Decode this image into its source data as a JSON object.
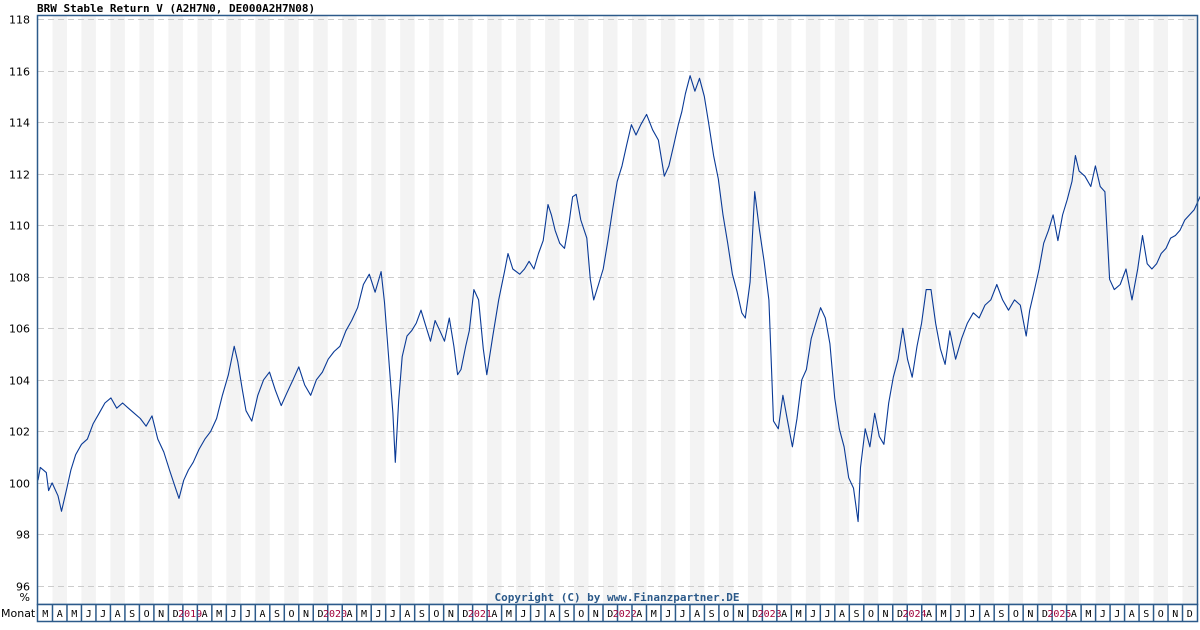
{
  "title": "BRW Stable Return V (A2H7N0, DE000A2H7N08)",
  "copyright": "Copyright (C) by www.Finanzpartner.DE",
  "x_axis_label": "Monat",
  "y_unit": "%",
  "colors": {
    "line": "#0a3a96",
    "frame": "#2c5a8a",
    "stripe": "#f3f3f3",
    "grid": "#cccccc",
    "year_label": "#a0003a"
  },
  "chart_data": {
    "type": "line",
    "title": "BRW Stable Return V (A2H7N0, DE000A2H7N08)",
    "xlabel": "Monat",
    "ylabel": "%",
    "ylim": [
      96,
      118
    ],
    "yticks": [
      96,
      98,
      100,
      102,
      104,
      106,
      108,
      110,
      112,
      114,
      116,
      118
    ],
    "grid": true,
    "legend": null,
    "x_range": [
      "2018-03",
      "2025-12"
    ],
    "x_tick_labels": [
      "M",
      "A",
      "M",
      "J",
      "J",
      "A",
      "S",
      "O",
      "N",
      "D",
      "2019",
      "A",
      "M",
      "J",
      "J",
      "A",
      "S",
      "O",
      "N",
      "D",
      "2020",
      "A",
      "M",
      "J",
      "J",
      "A",
      "S",
      "O",
      "N",
      "D",
      "2021",
      "A",
      "M",
      "J",
      "J",
      "A",
      "S",
      "O",
      "N",
      "D",
      "2022",
      "A",
      "M",
      "J",
      "J",
      "A",
      "S",
      "O",
      "N",
      "D",
      "2023",
      "A",
      "M",
      "J",
      "J",
      "A",
      "S",
      "O",
      "N",
      "D",
      "2024",
      "A",
      "M",
      "J",
      "J",
      "A",
      "S",
      "O",
      "N",
      "D",
      "2025",
      "A",
      "M",
      "J",
      "J",
      "A",
      "S",
      "O",
      "N",
      "D"
    ],
    "series": [
      {
        "name": "BRW Stable Return V",
        "points_month_index_value": [
          [
            0.0,
            100.1
          ],
          [
            0.16,
            100.6
          ],
          [
            0.57,
            100.4
          ],
          [
            0.73,
            99.7
          ],
          [
            0.97,
            100.0
          ],
          [
            1.38,
            99.5
          ],
          [
            1.62,
            98.9
          ],
          [
            1.95,
            99.7
          ],
          [
            2.27,
            100.5
          ],
          [
            2.6,
            101.1
          ],
          [
            3.0,
            101.5
          ],
          [
            3.41,
            101.7
          ],
          [
            3.81,
            102.3
          ],
          [
            4.22,
            102.7
          ],
          [
            4.62,
            103.1
          ],
          [
            5.03,
            103.3
          ],
          [
            5.43,
            102.9
          ],
          [
            5.84,
            103.1
          ],
          [
            6.24,
            102.9
          ],
          [
            6.65,
            102.7
          ],
          [
            7.06,
            102.5
          ],
          [
            7.46,
            102.2
          ],
          [
            7.87,
            102.6
          ],
          [
            8.27,
            101.7
          ],
          [
            8.68,
            101.2
          ],
          [
            9.08,
            100.5
          ],
          [
            9.49,
            99.8
          ],
          [
            9.73,
            99.4
          ],
          [
            10.06,
            100.1
          ],
          [
            10.38,
            100.5
          ],
          [
            10.71,
            100.8
          ],
          [
            11.11,
            101.3
          ],
          [
            11.52,
            101.7
          ],
          [
            11.92,
            102.0
          ],
          [
            12.33,
            102.5
          ],
          [
            12.73,
            103.4
          ],
          [
            13.14,
            104.2
          ],
          [
            13.54,
            105.3
          ],
          [
            13.79,
            104.7
          ],
          [
            14.11,
            103.6
          ],
          [
            14.36,
            102.8
          ],
          [
            14.76,
            102.4
          ],
          [
            15.17,
            103.4
          ],
          [
            15.57,
            104.0
          ],
          [
            15.98,
            104.3
          ],
          [
            16.38,
            103.6
          ],
          [
            16.79,
            103.0
          ],
          [
            17.19,
            103.5
          ],
          [
            17.6,
            104.0
          ],
          [
            18.0,
            104.5
          ],
          [
            18.41,
            103.8
          ],
          [
            18.82,
            103.4
          ],
          [
            19.22,
            104.0
          ],
          [
            19.63,
            104.3
          ],
          [
            20.03,
            104.8
          ],
          [
            20.44,
            105.1
          ],
          [
            20.84,
            105.3
          ],
          [
            21.25,
            105.9
          ],
          [
            21.65,
            106.3
          ],
          [
            22.06,
            106.8
          ],
          [
            22.46,
            107.7
          ],
          [
            22.87,
            108.1
          ],
          [
            23.27,
            107.4
          ],
          [
            23.68,
            108.2
          ],
          [
            23.92,
            107.0
          ],
          [
            24.17,
            105.1
          ],
          [
            24.5,
            102.7
          ],
          [
            24.66,
            100.8
          ],
          [
            24.9,
            103.2
          ],
          [
            25.14,
            104.9
          ],
          [
            25.47,
            105.7
          ],
          [
            25.79,
            105.9
          ],
          [
            26.11,
            106.2
          ],
          [
            26.44,
            106.7
          ],
          [
            26.76,
            106.1
          ],
          [
            27.09,
            105.5
          ],
          [
            27.41,
            106.3
          ],
          [
            27.74,
            105.9
          ],
          [
            28.06,
            105.5
          ],
          [
            28.39,
            106.4
          ],
          [
            28.71,
            105.3
          ],
          [
            28.96,
            104.2
          ],
          [
            29.2,
            104.4
          ],
          [
            29.52,
            105.3
          ],
          [
            29.77,
            105.9
          ],
          [
            30.09,
            107.5
          ],
          [
            30.41,
            107.1
          ],
          [
            30.74,
            105.2
          ],
          [
            30.98,
            104.2
          ],
          [
            31.39,
            105.7
          ],
          [
            31.8,
            107.1
          ],
          [
            32.2,
            108.2
          ],
          [
            32.44,
            108.9
          ],
          [
            32.77,
            108.3
          ],
          [
            33.25,
            108.1
          ],
          [
            33.58,
            108.3
          ],
          [
            33.9,
            108.6
          ],
          [
            34.23,
            108.3
          ],
          [
            34.55,
            108.9
          ],
          [
            34.87,
            109.4
          ],
          [
            35.2,
            110.8
          ],
          [
            35.44,
            110.4
          ],
          [
            35.69,
            109.8
          ],
          [
            36.01,
            109.3
          ],
          [
            36.34,
            109.1
          ],
          [
            36.66,
            110.1
          ],
          [
            36.9,
            111.1
          ],
          [
            37.15,
            111.2
          ],
          [
            37.47,
            110.2
          ],
          [
            37.88,
            109.5
          ],
          [
            38.12,
            107.9
          ],
          [
            38.36,
            107.1
          ],
          [
            38.69,
            107.7
          ],
          [
            39.01,
            108.3
          ],
          [
            39.34,
            109.4
          ],
          [
            39.66,
            110.6
          ],
          [
            39.98,
            111.7
          ],
          [
            40.31,
            112.3
          ],
          [
            40.63,
            113.1
          ],
          [
            40.96,
            113.9
          ],
          [
            41.28,
            113.5
          ],
          [
            41.61,
            113.9
          ],
          [
            42.01,
            114.3
          ],
          [
            42.42,
            113.7
          ],
          [
            42.82,
            113.3
          ],
          [
            43.23,
            111.9
          ],
          [
            43.55,
            112.3
          ],
          [
            43.88,
            113.1
          ],
          [
            44.2,
            113.9
          ],
          [
            44.44,
            114.4
          ],
          [
            44.69,
            115.1
          ],
          [
            45.01,
            115.8
          ],
          [
            45.34,
            115.2
          ],
          [
            45.66,
            115.7
          ],
          [
            45.99,
            115.0
          ],
          [
            46.31,
            113.9
          ],
          [
            46.63,
            112.7
          ],
          [
            46.96,
            111.8
          ],
          [
            47.28,
            110.4
          ],
          [
            47.61,
            109.3
          ],
          [
            47.93,
            108.1
          ],
          [
            48.26,
            107.4
          ],
          [
            48.58,
            106.6
          ],
          [
            48.82,
            106.4
          ],
          [
            49.15,
            107.8
          ],
          [
            49.47,
            111.3
          ],
          [
            49.8,
            109.8
          ],
          [
            50.12,
            108.6
          ],
          [
            50.45,
            107.1
          ],
          [
            50.77,
            102.4
          ],
          [
            51.1,
            102.1
          ],
          [
            51.42,
            103.4
          ],
          [
            51.74,
            102.4
          ],
          [
            52.07,
            101.4
          ],
          [
            52.39,
            102.5
          ],
          [
            52.72,
            104.0
          ],
          [
            53.04,
            104.4
          ],
          [
            53.37,
            105.6
          ],
          [
            53.69,
            106.2
          ],
          [
            54.02,
            106.8
          ],
          [
            54.34,
            106.4
          ],
          [
            54.66,
            105.4
          ],
          [
            54.99,
            103.3
          ],
          [
            55.31,
            102.1
          ],
          [
            55.64,
            101.4
          ],
          [
            55.96,
            100.2
          ],
          [
            56.29,
            99.8
          ],
          [
            56.61,
            98.5
          ],
          [
            56.77,
            100.6
          ],
          [
            57.1,
            102.1
          ],
          [
            57.42,
            101.4
          ],
          [
            57.75,
            102.7
          ],
          [
            58.07,
            101.8
          ],
          [
            58.39,
            101.5
          ],
          [
            58.72,
            103.1
          ],
          [
            59.04,
            104.1
          ],
          [
            59.37,
            104.8
          ],
          [
            59.69,
            106.0
          ],
          [
            60.02,
            104.8
          ],
          [
            60.34,
            104.1
          ],
          [
            60.67,
            105.3
          ],
          [
            60.99,
            106.2
          ],
          [
            61.31,
            107.5
          ],
          [
            61.64,
            107.5
          ],
          [
            61.96,
            106.2
          ],
          [
            62.29,
            105.2
          ],
          [
            62.61,
            104.6
          ],
          [
            62.94,
            105.9
          ],
          [
            63.34,
            104.8
          ],
          [
            63.75,
            105.6
          ],
          [
            64.15,
            106.2
          ],
          [
            64.56,
            106.6
          ],
          [
            64.96,
            106.4
          ],
          [
            65.37,
            106.9
          ],
          [
            65.77,
            107.1
          ],
          [
            66.18,
            107.7
          ],
          [
            66.58,
            107.1
          ],
          [
            66.99,
            106.7
          ],
          [
            67.4,
            107.1
          ],
          [
            67.8,
            106.9
          ],
          [
            68.21,
            105.7
          ],
          [
            68.45,
            106.7
          ],
          [
            68.78,
            107.5
          ],
          [
            69.1,
            108.3
          ],
          [
            69.42,
            109.3
          ],
          [
            69.75,
            109.8
          ],
          [
            70.07,
            110.4
          ],
          [
            70.4,
            109.4
          ],
          [
            70.72,
            110.4
          ],
          [
            71.05,
            111.0
          ],
          [
            71.37,
            111.7
          ],
          [
            71.61,
            112.7
          ],
          [
            71.86,
            112.1
          ],
          [
            72.26,
            111.9
          ],
          [
            72.67,
            111.5
          ],
          [
            72.99,
            112.3
          ],
          [
            73.32,
            111.5
          ],
          [
            73.64,
            111.3
          ],
          [
            73.97,
            107.9
          ],
          [
            74.29,
            107.5
          ],
          [
            74.7,
            107.7
          ],
          [
            75.1,
            108.3
          ],
          [
            75.51,
            107.1
          ],
          [
            75.91,
            108.3
          ],
          [
            76.24,
            109.6
          ],
          [
            76.56,
            108.5
          ],
          [
            76.89,
            108.3
          ],
          [
            77.21,
            108.5
          ],
          [
            77.53,
            108.9
          ],
          [
            77.86,
            109.1
          ],
          [
            78.18,
            109.5
          ],
          [
            78.51,
            109.6
          ],
          [
            78.83,
            109.8
          ],
          [
            79.16,
            110.2
          ],
          [
            79.48,
            110.4
          ],
          [
            79.81,
            110.6
          ],
          [
            80.29,
            111.2
          ],
          [
            80.62,
            111.3
          ],
          [
            81.1,
            112.1
          ],
          [
            81.43,
            111.5
          ],
          [
            81.75,
            111.1
          ],
          [
            82.24,
            110.6
          ],
          [
            82.56,
            111.5
          ],
          [
            82.89,
            111.9
          ],
          [
            83.21,
            111.3
          ],
          [
            83.54,
            111.5
          ],
          [
            83.86,
            110.9
          ],
          [
            84.18,
            109.3
          ],
          [
            84.67,
            108.9
          ],
          [
            85.0,
            106.6
          ],
          [
            85.32,
            104.2
          ],
          [
            85.64,
            105.4
          ],
          [
            85.97,
            106.6
          ],
          [
            86.29,
            107.0
          ],
          [
            86.62,
            105.8
          ],
          [
            87.02,
            105.2
          ],
          [
            87.43,
            105.0
          ],
          [
            87.75,
            104.6
          ],
          [
            88.08,
            105.2
          ],
          [
            88.4,
            104.8
          ],
          [
            88.73,
            104.0
          ],
          [
            89.05,
            104.6
          ],
          [
            89.38,
            105.0
          ],
          [
            89.7,
            104.6
          ],
          [
            90.03,
            104.8
          ],
          [
            90.35,
            104.2
          ],
          [
            90.68,
            105.2
          ],
          [
            91.0,
            104.0
          ],
          [
            91.32,
            103.6
          ],
          [
            91.65,
            103.6
          ],
          [
            91.97,
            103.2
          ],
          [
            92.14,
            102.8
          ],
          [
            92.46,
            103.6
          ],
          [
            92.79,
            104.0
          ],
          [
            93.11,
            103.8
          ],
          [
            93.36,
            103.6
          ]
        ]
      }
    ]
  }
}
